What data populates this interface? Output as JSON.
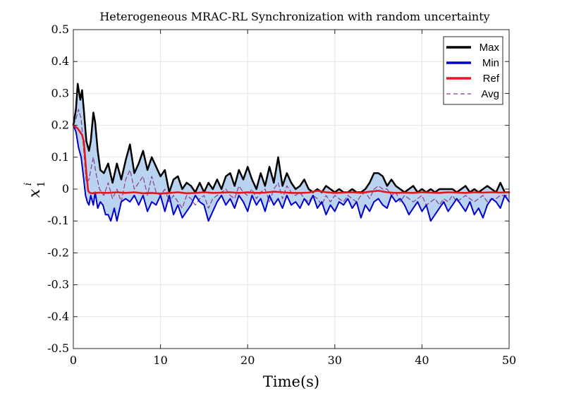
{
  "chart_data": {
    "type": "line",
    "title": "Heterogeneous MRAC-RL Synchronization with random uncertainty",
    "xlabel": "Time(s)",
    "ylabel_main": "x",
    "ylabel_sup": "i",
    "ylabel_sub": "1",
    "xlim": [
      0,
      50
    ],
    "ylim": [
      -0.5,
      0.5
    ],
    "xticks": [
      0,
      10,
      20,
      30,
      40,
      50
    ],
    "yticks": [
      -0.5,
      -0.4,
      -0.3,
      -0.2,
      -0.1,
      0,
      0.1,
      0.2,
      0.3,
      0.4,
      0.5
    ],
    "xtick_labels": [
      "0",
      "10",
      "20",
      "30",
      "40",
      "50"
    ],
    "ytick_labels": [
      "-0.5",
      "-0.4",
      "-0.3",
      "-0.2",
      "-0.1",
      "0",
      "0.1",
      "0.2",
      "0.3",
      "0.4",
      "0.5"
    ],
    "grid": true,
    "legend_position": "top-right",
    "band_fill_color": "#b9d3f0",
    "series": [
      {
        "name": "Max",
        "color": "#000000",
        "style": "solid",
        "x": [
          0,
          0.3,
          0.5,
          0.8,
          1.0,
          1.2,
          1.5,
          1.8,
          2.0,
          2.3,
          2.5,
          2.8,
          3.1,
          3.5,
          4.0,
          4.5,
          5.0,
          5.5,
          6.0,
          6.5,
          7.0,
          7.5,
          8.0,
          8.5,
          9.0,
          9.5,
          10.0,
          10.5,
          11.0,
          11.5,
          12.0,
          12.5,
          13.0,
          13.5,
          14.0,
          14.5,
          15.0,
          15.5,
          16.0,
          16.5,
          17.0,
          17.5,
          18.0,
          18.5,
          19.0,
          19.5,
          20.0,
          20.5,
          21.0,
          21.5,
          22.0,
          22.5,
          23.0,
          23.5,
          24.0,
          24.5,
          25.0,
          25.5,
          26.0,
          26.5,
          27.0,
          27.5,
          28.0,
          28.5,
          29.0,
          29.5,
          30.0,
          30.5,
          31.0,
          31.5,
          32.0,
          32.5,
          33.0,
          33.5,
          34.0,
          34.5,
          35.0,
          35.5,
          36.0,
          36.5,
          37.0,
          37.5,
          38.0,
          38.5,
          39.0,
          39.5,
          40.0,
          40.5,
          41.0,
          41.5,
          42.0,
          42.5,
          43.0,
          43.5,
          44.0,
          44.5,
          45.0,
          45.5,
          46.0,
          46.5,
          47.0,
          47.5,
          48.0,
          48.5,
          49.0,
          49.5,
          50.0
        ],
        "y": [
          0.2,
          0.25,
          0.33,
          0.28,
          0.31,
          0.25,
          0.15,
          0.12,
          0.15,
          0.24,
          0.21,
          0.12,
          0.06,
          0.05,
          0.08,
          0.02,
          0.08,
          0.03,
          0.09,
          0.14,
          0.05,
          0.08,
          0.12,
          0.06,
          0.1,
          0.07,
          0.04,
          0.06,
          -0.01,
          0.03,
          0.04,
          0.0,
          0.02,
          0.01,
          -0.01,
          0.02,
          -0.01,
          0.02,
          0.0,
          0.03,
          0.0,
          0.04,
          0.05,
          0.01,
          0.06,
          0.03,
          0.07,
          0.03,
          0.0,
          0.05,
          0.01,
          0.07,
          0.02,
          0.1,
          0.01,
          0.05,
          0.02,
          0.0,
          0.01,
          0.03,
          0.0,
          -0.01,
          0.0,
          -0.01,
          0.01,
          0.0,
          -0.01,
          0.0,
          -0.01,
          -0.01,
          0.0,
          -0.01,
          -0.01,
          0.0,
          0.02,
          0.05,
          0.05,
          0.04,
          0.01,
          0.03,
          0.01,
          0.0,
          -0.01,
          0.0,
          0.01,
          -0.01,
          0.0,
          -0.01,
          0.0,
          -0.01,
          0.0,
          0.0,
          0.0,
          0.0,
          -0.01,
          0.0,
          0.01,
          -0.01,
          0.0,
          -0.01,
          0.0,
          0.01,
          0.0,
          -0.01,
          0.02,
          -0.01,
          -0.01
        ]
      },
      {
        "name": "Min",
        "color": "#0000c8",
        "style": "solid",
        "x": [
          0,
          0.3,
          0.6,
          0.9,
          1.2,
          1.4,
          1.6,
          1.8,
          2.0,
          2.3,
          2.5,
          2.8,
          3.1,
          3.4,
          3.7,
          4.0,
          4.3,
          4.7,
          5.0,
          5.5,
          6.0,
          6.5,
          7.0,
          7.5,
          8.0,
          8.5,
          9.0,
          9.5,
          10.0,
          10.5,
          11.0,
          11.5,
          12.0,
          12.5,
          13.0,
          13.5,
          14.0,
          14.5,
          15.0,
          15.5,
          16.0,
          16.5,
          17.0,
          17.5,
          18.0,
          18.5,
          19.0,
          19.5,
          20.0,
          20.5,
          21.0,
          21.5,
          22.0,
          22.5,
          23.0,
          23.5,
          24.0,
          24.5,
          25.0,
          25.5,
          26.0,
          26.5,
          27.0,
          27.5,
          28.0,
          28.5,
          29.0,
          29.5,
          30.0,
          30.5,
          31.0,
          31.5,
          32.0,
          32.5,
          33.0,
          33.5,
          34.0,
          34.5,
          35.0,
          35.5,
          36.0,
          36.5,
          37.0,
          37.5,
          38.0,
          38.5,
          39.0,
          39.5,
          40.0,
          40.5,
          41.0,
          41.5,
          42.0,
          42.5,
          43.0,
          43.5,
          44.0,
          44.5,
          45.0,
          45.5,
          46.0,
          46.5,
          47.0,
          47.5,
          48.0,
          48.5,
          49.0,
          49.5,
          50.0
        ],
        "y": [
          0.2,
          0.18,
          0.13,
          0.1,
          0.03,
          -0.02,
          -0.04,
          -0.05,
          -0.02,
          -0.05,
          -0.01,
          -0.06,
          -0.04,
          -0.05,
          -0.08,
          -0.08,
          -0.1,
          -0.06,
          -0.1,
          -0.04,
          -0.03,
          -0.04,
          -0.02,
          -0.05,
          -0.02,
          -0.07,
          -0.04,
          -0.05,
          -0.02,
          -0.07,
          -0.02,
          -0.08,
          -0.05,
          -0.09,
          -0.07,
          -0.05,
          -0.02,
          -0.04,
          -0.05,
          -0.1,
          -0.07,
          -0.04,
          -0.02,
          -0.05,
          -0.03,
          -0.06,
          -0.02,
          -0.04,
          -0.07,
          -0.02,
          -0.05,
          -0.03,
          -0.07,
          -0.02,
          -0.05,
          -0.03,
          -0.06,
          -0.02,
          -0.05,
          -0.04,
          -0.06,
          -0.03,
          -0.05,
          -0.02,
          -0.06,
          -0.04,
          -0.08,
          -0.05,
          -0.07,
          -0.04,
          -0.05,
          -0.03,
          -0.06,
          -0.04,
          -0.09,
          -0.05,
          -0.07,
          -0.04,
          -0.03,
          -0.05,
          -0.06,
          -0.02,
          -0.04,
          -0.03,
          -0.05,
          -0.08,
          -0.06,
          -0.04,
          -0.07,
          -0.05,
          -0.1,
          -0.08,
          -0.06,
          -0.04,
          -0.07,
          -0.05,
          -0.03,
          -0.05,
          -0.07,
          -0.04,
          -0.08,
          -0.06,
          -0.09,
          -0.05,
          -0.03,
          -0.04,
          -0.06,
          -0.02,
          -0.04
        ]
      },
      {
        "name": "Ref",
        "color": "#e8141e",
        "style": "solid",
        "x": [
          0,
          0.5,
          1.0,
          1.2,
          1.5,
          1.7,
          1.9,
          2.1,
          2.5,
          3.0,
          4.0,
          5.0,
          6.0,
          7.0,
          8.0,
          9.0,
          10.0,
          11.0,
          12.0,
          13.0,
          14.0,
          15.0,
          16.0,
          17.0,
          18.0,
          19.0,
          20.0,
          21.0,
          22.0,
          23.0,
          24.0,
          25.0,
          26.0,
          27.0,
          28.0,
          29.0,
          30.0,
          31.0,
          32.0,
          33.0,
          34.0,
          35.0,
          36.0,
          37.0,
          38.0,
          39.0,
          40.0,
          41.0,
          42.0,
          43.0,
          44.0,
          45.0,
          46.0,
          47.0,
          48.0,
          49.0,
          50.0
        ],
        "y": [
          0.2,
          0.19,
          0.17,
          0.15,
          0.05,
          -0.005,
          -0.012,
          -0.013,
          -0.012,
          -0.011,
          -0.012,
          -0.01,
          -0.012,
          -0.01,
          -0.013,
          -0.012,
          -0.014,
          -0.012,
          -0.01,
          -0.013,
          -0.012,
          -0.01,
          -0.012,
          -0.011,
          -0.01,
          -0.012,
          -0.01,
          -0.012,
          -0.011,
          -0.008,
          -0.01,
          -0.012,
          -0.012,
          -0.011,
          -0.005,
          -0.01,
          -0.012,
          -0.011,
          -0.01,
          -0.012,
          -0.008,
          -0.005,
          -0.01,
          -0.012,
          -0.011,
          -0.012,
          -0.01,
          -0.011,
          -0.012,
          -0.01,
          -0.011,
          -0.012,
          -0.01,
          -0.011,
          -0.01,
          -0.011,
          -0.01
        ]
      },
      {
        "name": "Avg",
        "color": "#8a3a8c",
        "style": "dashed",
        "x": [
          0,
          0.3,
          0.6,
          0.9,
          1.2,
          1.5,
          1.8,
          2.0,
          2.3,
          2.6,
          3.0,
          3.5,
          4.0,
          4.5,
          5.0,
          5.5,
          6.0,
          6.5,
          7.0,
          7.5,
          8.0,
          8.5,
          9.0,
          9.5,
          10.0,
          10.5,
          11.0,
          11.5,
          12.0,
          12.5,
          13.0,
          13.5,
          14.0,
          14.5,
          15.0,
          15.5,
          16.0,
          16.5,
          17.0,
          17.5,
          18.0,
          18.5,
          19.0,
          19.5,
          20.0,
          20.5,
          21.0,
          21.5,
          22.0,
          22.5,
          23.0,
          23.5,
          24.0,
          24.5,
          25.0,
          25.5,
          26.0,
          26.5,
          27.0,
          27.5,
          28.0,
          28.5,
          29.0,
          29.5,
          30.0,
          30.5,
          31.0,
          31.5,
          32.0,
          32.5,
          33.0,
          33.5,
          34.0,
          34.5,
          35.0,
          35.5,
          36.0,
          36.5,
          37.0,
          37.5,
          38.0,
          38.5,
          39.0,
          39.5,
          40.0,
          40.5,
          41.0,
          41.5,
          42.0,
          42.5,
          43.0,
          43.5,
          44.0,
          44.5,
          45.0,
          45.5,
          46.0,
          46.5,
          47.0,
          47.5,
          48.0,
          48.5,
          49.0,
          49.5,
          50.0
        ],
        "y": [
          0.2,
          0.22,
          0.25,
          0.22,
          0.12,
          0.02,
          0.03,
          0.06,
          0.1,
          0.05,
          0.0,
          -0.02,
          0.02,
          -0.03,
          0.0,
          -0.04,
          0.03,
          0.06,
          0.0,
          0.02,
          0.04,
          -0.02,
          0.04,
          -0.01,
          -0.02,
          0.0,
          -0.04,
          -0.02,
          -0.04,
          -0.06,
          -0.02,
          -0.03,
          -0.05,
          -0.03,
          -0.02,
          -0.06,
          -0.03,
          -0.02,
          -0.01,
          0.0,
          -0.02,
          -0.03,
          0.01,
          -0.01,
          -0.02,
          0.0,
          -0.03,
          -0.01,
          0.0,
          -0.04,
          0.0,
          0.02,
          -0.03,
          0.01,
          -0.01,
          -0.02,
          -0.01,
          -0.03,
          -0.04,
          -0.02,
          -0.03,
          -0.05,
          -0.02,
          -0.04,
          -0.02,
          -0.03,
          -0.04,
          -0.02,
          -0.03,
          -0.04,
          -0.02,
          -0.01,
          -0.03,
          0.0,
          0.01,
          0.0,
          0.0,
          -0.02,
          -0.01,
          -0.04,
          -0.02,
          -0.03,
          -0.04,
          -0.03,
          -0.02,
          -0.05,
          -0.04,
          -0.03,
          -0.05,
          -0.03,
          -0.04,
          -0.02,
          -0.04,
          -0.03,
          -0.02,
          -0.03,
          -0.04,
          -0.03,
          -0.02,
          -0.04,
          -0.03,
          -0.03,
          -0.02,
          -0.02,
          -0.02
        ]
      }
    ]
  }
}
